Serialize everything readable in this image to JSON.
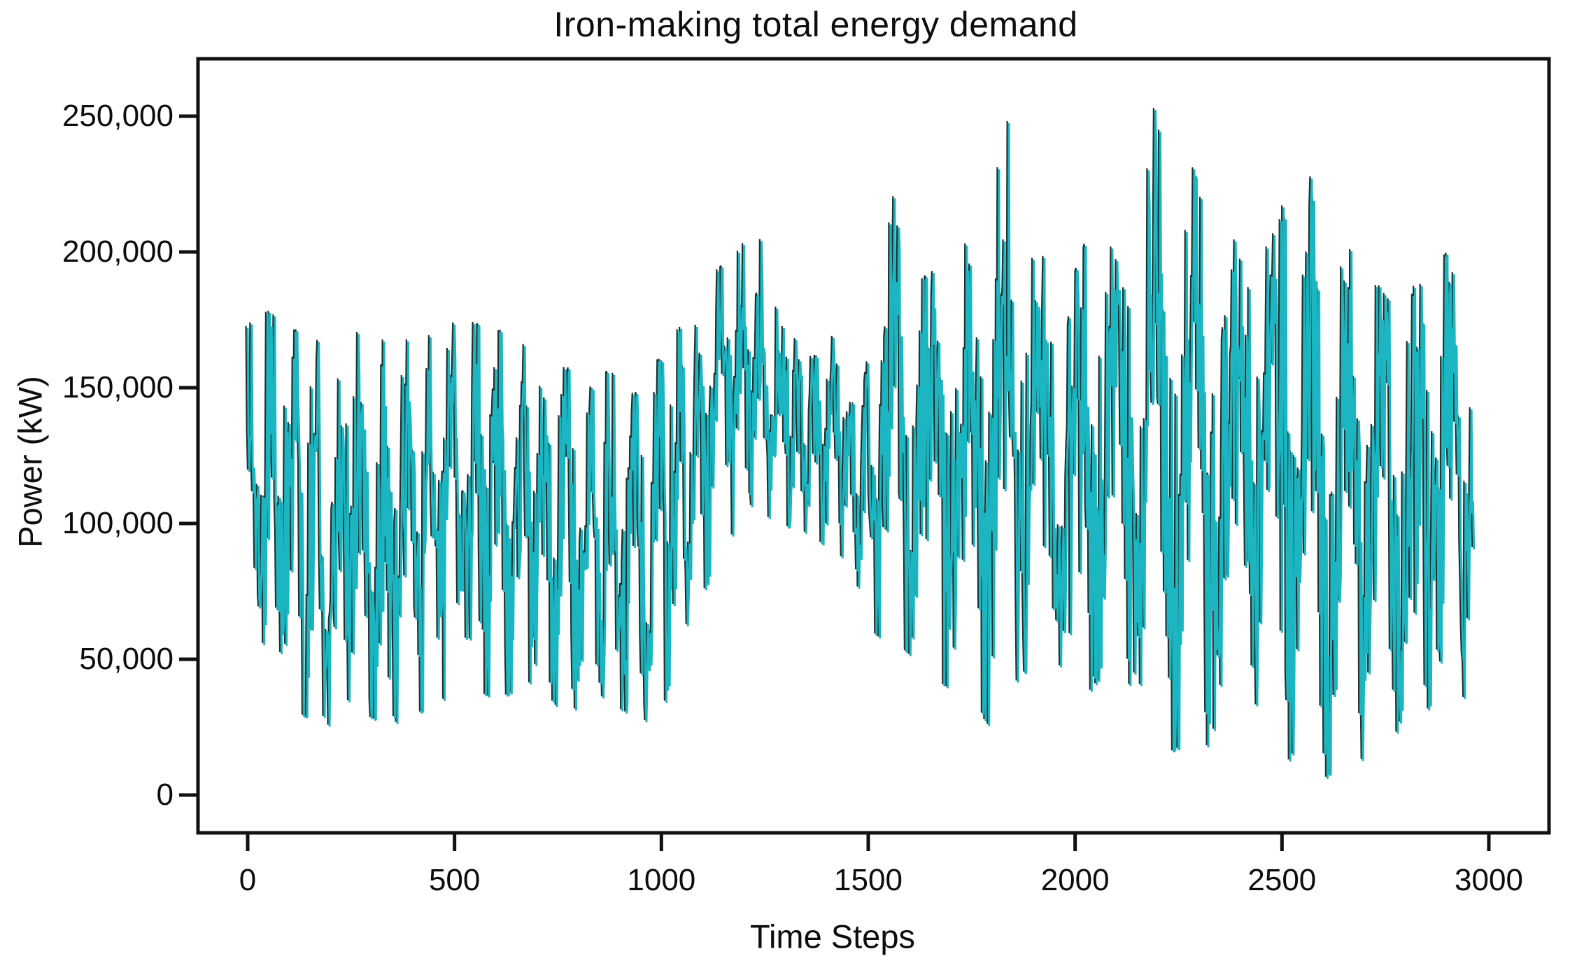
{
  "chart_data": {
    "type": "line",
    "title": "Iron-making total energy demand",
    "xlabel": "Time Steps",
    "ylabel": "Power (kW)",
    "series_name": "total energy demand",
    "legend": "none",
    "grid": "off",
    "background_color": "#ffffff",
    "line_color": "#1bb6c1",
    "shadow_color": "#20302f",
    "frame_color": "#111111",
    "x_tick_values": [
      0,
      500,
      1000,
      1500,
      2000,
      2500,
      3000
    ],
    "x_tick_labels": [
      "0",
      "500",
      "1000",
      "1500",
      "2000",
      "2500",
      "3000"
    ],
    "y_tick_values": [
      0,
      50000,
      100000,
      150000,
      200000,
      250000
    ],
    "y_tick_labels": [
      "0",
      "50,000",
      "100,000",
      "150,000",
      "200,000",
      "250,000"
    ],
    "xlim": [
      -123,
      3149
    ],
    "ylim": [
      -14400,
      271400
    ],
    "x_start": 0,
    "x_end": 2964,
    "noise_seed": 421973,
    "envelope": [
      [
        0,
        55000,
        172000
      ],
      [
        30,
        60000,
        176000
      ],
      [
        60,
        45000,
        178000
      ],
      [
        100,
        32000,
        170000
      ],
      [
        150,
        28000,
        172000
      ],
      [
        200,
        25000,
        168000
      ],
      [
        250,
        35000,
        172000
      ],
      [
        300,
        28000,
        166000
      ],
      [
        360,
        26000,
        168000
      ],
      [
        420,
        30000,
        166000
      ],
      [
        480,
        35000,
        173000
      ],
      [
        540,
        40000,
        174000
      ],
      [
        600,
        34000,
        170000
      ],
      [
        650,
        38000,
        172000
      ],
      [
        700,
        42000,
        160000
      ],
      [
        760,
        30000,
        157000
      ],
      [
        820,
        32000,
        156000
      ],
      [
        880,
        33000,
        155000
      ],
      [
        940,
        28000,
        157000
      ],
      [
        1000,
        25000,
        160000
      ],
      [
        1040,
        55000,
        170000
      ],
      [
        1090,
        70000,
        189000
      ],
      [
        1140,
        85000,
        193000
      ],
      [
        1190,
        100000,
        200000
      ],
      [
        1230,
        108000,
        210000
      ],
      [
        1270,
        100000,
        190000
      ],
      [
        1320,
        98000,
        180000
      ],
      [
        1370,
        95000,
        172000
      ],
      [
        1420,
        88000,
        168000
      ],
      [
        1470,
        80000,
        163000
      ],
      [
        1510,
        60000,
        168000
      ],
      [
        1548,
        55000,
        190000
      ],
      [
        1562,
        65000,
        237000
      ],
      [
        1580,
        55000,
        195000
      ],
      [
        1620,
        48000,
        188000
      ],
      [
        1665,
        42000,
        193000
      ],
      [
        1705,
        38000,
        190000
      ],
      [
        1745,
        42000,
        205000
      ],
      [
        1790,
        25000,
        212000
      ],
      [
        1845,
        38000,
        251000
      ],
      [
        1880,
        45000,
        222000
      ],
      [
        1915,
        40000,
        200000
      ],
      [
        1950,
        55000,
        212000
      ],
      [
        2000,
        30000,
        190000
      ],
      [
        2060,
        42000,
        223000
      ],
      [
        2105,
        38000,
        210000
      ],
      [
        2150,
        36000,
        214000
      ],
      [
        2196,
        55000,
        254000
      ],
      [
        2230,
        15000,
        232000
      ],
      [
        2287,
        20000,
        231000
      ],
      [
        2330,
        17000,
        205000
      ],
      [
        2378,
        32000,
        200000
      ],
      [
        2425,
        28000,
        218000
      ],
      [
        2470,
        42000,
        230000
      ],
      [
        2505,
        8000,
        216000
      ],
      [
        2540,
        18000,
        229000
      ],
      [
        2572,
        10000,
        227000
      ],
      [
        2605,
        5000,
        182000
      ],
      [
        2650,
        14000,
        206000
      ],
      [
        2690,
        12000,
        200000
      ],
      [
        2725,
        15000,
        186000
      ],
      [
        2762,
        24000,
        198000
      ],
      [
        2800,
        21000,
        176000
      ],
      [
        2845,
        27000,
        198000
      ],
      [
        2885,
        42000,
        200000
      ],
      [
        2915,
        38000,
        198000
      ],
      [
        2945,
        35000,
        160000
      ],
      [
        2964,
        88000,
        184000
      ]
    ],
    "cycles": [
      {
        "from": 0,
        "to": 1005,
        "period": 55
      },
      {
        "from": 1005,
        "to": 1265,
        "period": 50
      },
      {
        "from": 1265,
        "to": 1520,
        "period": 42
      },
      {
        "from": 1520,
        "to": 2010,
        "period": 88
      },
      {
        "from": 2010,
        "to": 2520,
        "period": 96
      },
      {
        "from": 2520,
        "to": 2965,
        "period": 84
      }
    ]
  }
}
